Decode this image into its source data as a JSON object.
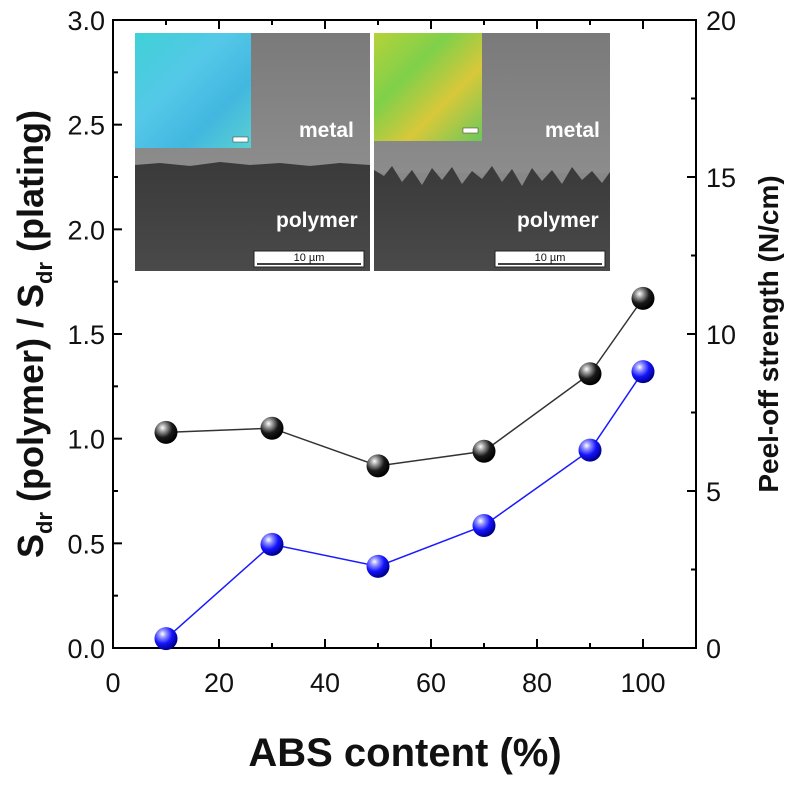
{
  "chart_data": {
    "type": "line",
    "xlabel": "ABS content (%)",
    "ylabel_left_parts": [
      "S",
      "dr",
      " (polymer) / S",
      "dr",
      " (plating)"
    ],
    "ylabel_right": "Peel-off strength (N/cm)",
    "xlim": [
      0,
      110
    ],
    "ylim_left": [
      0,
      3.0
    ],
    "ylim_right": [
      0,
      20
    ],
    "x_ticks": [
      0,
      20,
      40,
      60,
      80,
      100
    ],
    "x_tick_labels": [
      "0",
      "20",
      "40",
      "60",
      "80",
      "100"
    ],
    "y_left_ticks": [
      0.0,
      0.5,
      1.0,
      1.5,
      2.0,
      2.5,
      3.0
    ],
    "y_left_tick_labels": [
      "0.0",
      "0.5",
      "1.0",
      "1.5",
      "2.0",
      "2.5",
      "3.0"
    ],
    "y_right_ticks": [
      0,
      5,
      10,
      15,
      20
    ],
    "y_right_tick_labels": [
      "0",
      "5",
      "10",
      "15",
      "20"
    ],
    "grid": false,
    "series": [
      {
        "axis": "left",
        "color": "#000000",
        "line_color": "#333333",
        "x": [
          10,
          30,
          50,
          70,
          90,
          100
        ],
        "values": [
          1.03,
          1.05,
          0.87,
          0.94,
          1.31,
          1.67
        ]
      },
      {
        "axis": "right",
        "color": "#1a1aff",
        "line_color": "#1a1aff",
        "x": [
          10,
          30,
          50,
          70,
          90,
          100
        ],
        "values": [
          0.3,
          3.3,
          2.6,
          3.9,
          6.3,
          8.8
        ]
      }
    ],
    "inset": {
      "left_panel": {
        "top_label": "metal",
        "bottom_label": "polymer",
        "scale_label": "10 µm"
      },
      "right_panel": {
        "top_label": "metal",
        "bottom_label": "polymer",
        "scale_label": "10 µm"
      }
    }
  }
}
